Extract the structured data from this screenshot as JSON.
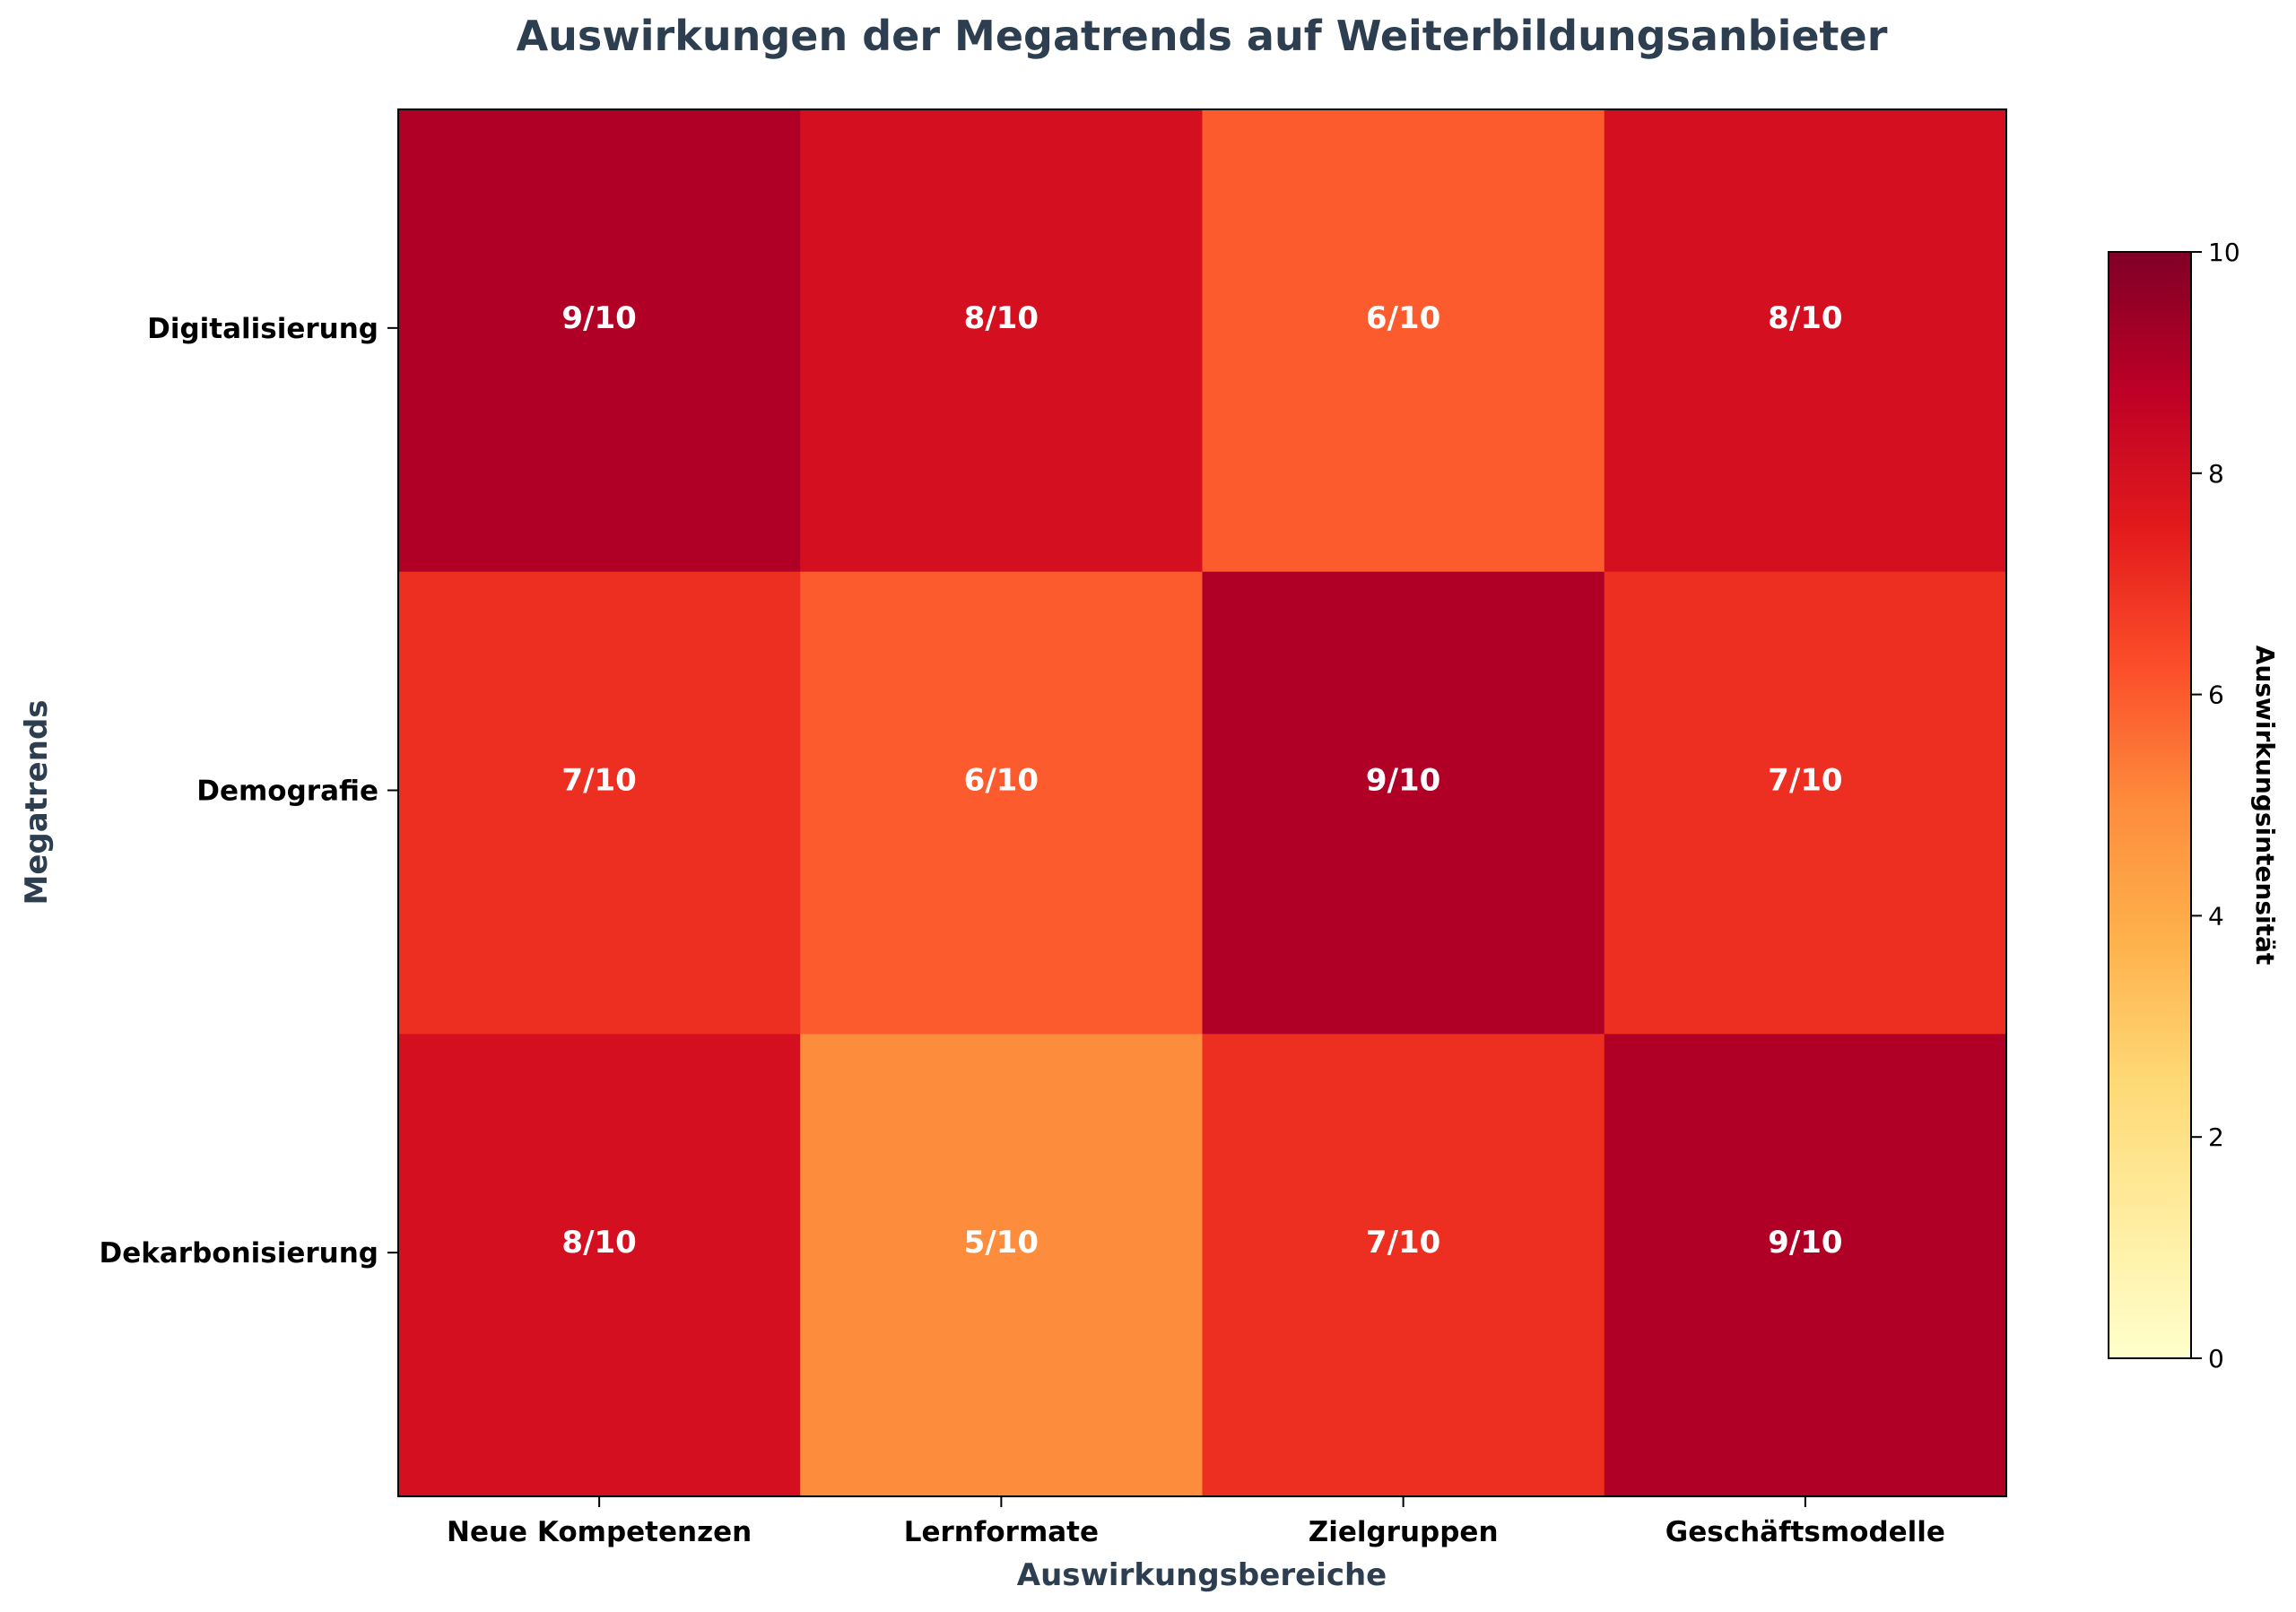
{
  "chart_data": {
    "type": "heatmap",
    "title": "Auswirkungen der Megatrends auf Weiterbildungsanbieter",
    "xlabel": "Auswirkungsbereiche",
    "ylabel": "Megatrends",
    "x_categories": [
      "Neue Kompetenzen",
      "Lernformate",
      "Zielgruppen",
      "Geschäftsmodelle"
    ],
    "y_categories": [
      "Digitalisierung",
      "Demografie",
      "Dekarbonisierung"
    ],
    "values": [
      [
        9,
        8,
        6,
        8
      ],
      [
        7,
        6,
        9,
        7
      ],
      [
        8,
        5,
        7,
        9
      ]
    ],
    "cell_labels": [
      [
        "9/10",
        "8/10",
        "6/10",
        "8/10"
      ],
      [
        "7/10",
        "6/10",
        "9/10",
        "7/10"
      ],
      [
        "8/10",
        "5/10",
        "7/10",
        "9/10"
      ]
    ],
    "colormap": "YlOrRd",
    "colorbar": {
      "label": "Auswirkungsintensität",
      "range": [
        0,
        10
      ],
      "ticks": [
        "0",
        "2",
        "4",
        "6",
        "8",
        "10"
      ]
    },
    "colors": {
      "title": "#2c3e50",
      "axis_label": "#2c3e50",
      "cell_text": "#ffffff"
    }
  }
}
